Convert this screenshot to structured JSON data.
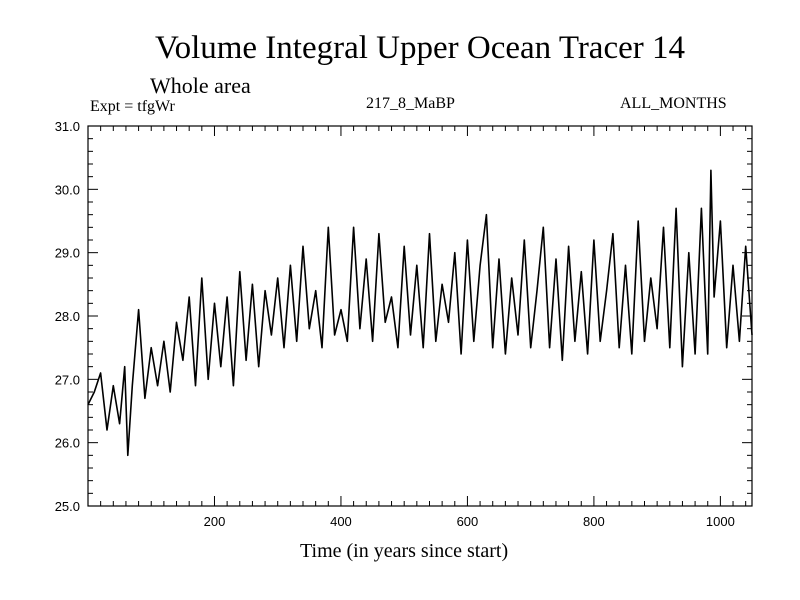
{
  "chart_data": {
    "type": "line",
    "title": "Volume Integral Upper Ocean Tracer 14",
    "subtitle": "Whole area",
    "experiment_label": "Expt = tfgWr",
    "run_label": "217_8_MaBP",
    "period_label": "ALL_MONTHS",
    "xlabel": "Time (in years since start)",
    "ylabel": "",
    "xlim": [
      0,
      1050
    ],
    "ylim": [
      25.0,
      31.0
    ],
    "xticks": [
      200,
      400,
      600,
      800,
      1000
    ],
    "xtick_labels": [
      "200",
      "400",
      "600",
      "800",
      "1000"
    ],
    "yticks": [
      25.0,
      26.0,
      27.0,
      28.0,
      29.0,
      30.0,
      31.0
    ],
    "ytick_labels": [
      "25.0",
      "26.0",
      "27.0",
      "28.0",
      "29.0",
      "30.0",
      "31.0"
    ],
    "series": [
      {
        "name": "Volume Integral Upper Ocean Tracer 14",
        "x": [
          0,
          10,
          20,
          30,
          40,
          50,
          58,
          63,
          70,
          80,
          90,
          100,
          110,
          120,
          130,
          140,
          150,
          160,
          170,
          180,
          190,
          200,
          210,
          220,
          230,
          240,
          250,
          260,
          270,
          280,
          290,
          300,
          310,
          320,
          330,
          340,
          350,
          360,
          370,
          380,
          390,
          400,
          410,
          420,
          430,
          440,
          450,
          460,
          470,
          480,
          490,
          500,
          510,
          520,
          530,
          540,
          550,
          560,
          570,
          580,
          590,
          600,
          610,
          620,
          630,
          640,
          650,
          660,
          670,
          680,
          690,
          700,
          710,
          720,
          730,
          740,
          750,
          760,
          770,
          780,
          790,
          800,
          810,
          820,
          830,
          840,
          850,
          860,
          870,
          880,
          890,
          900,
          910,
          920,
          930,
          940,
          950,
          960,
          970,
          980,
          985,
          990,
          1000,
          1010,
          1020,
          1030,
          1040,
          1050
        ],
        "values": [
          26.6,
          26.8,
          27.1,
          26.2,
          26.9,
          26.3,
          27.2,
          25.8,
          26.9,
          28.1,
          26.7,
          27.5,
          26.9,
          27.6,
          26.8,
          27.9,
          27.3,
          28.3,
          26.9,
          28.6,
          27.0,
          28.2,
          27.2,
          28.3,
          26.9,
          28.7,
          27.3,
          28.5,
          27.2,
          28.4,
          27.7,
          28.6,
          27.5,
          28.8,
          27.6,
          29.1,
          27.8,
          28.4,
          27.5,
          29.4,
          27.7,
          28.1,
          27.6,
          29.4,
          27.8,
          28.9,
          27.6,
          29.3,
          27.9,
          28.3,
          27.5,
          29.1,
          27.7,
          28.8,
          27.5,
          29.3,
          27.6,
          28.5,
          27.9,
          29.0,
          27.4,
          29.2,
          27.6,
          28.8,
          29.6,
          27.5,
          28.9,
          27.4,
          28.6,
          27.7,
          29.2,
          27.5,
          28.4,
          29.4,
          27.5,
          28.9,
          27.3,
          29.1,
          27.6,
          28.7,
          27.4,
          29.2,
          27.6,
          28.4,
          29.3,
          27.5,
          28.8,
          27.4,
          29.5,
          27.6,
          28.6,
          27.8,
          29.4,
          27.5,
          29.7,
          27.2,
          29.0,
          27.4,
          29.7,
          27.4,
          30.3,
          28.3,
          29.5,
          27.5,
          28.8,
          27.6,
          29.1,
          27.7
        ]
      }
    ]
  }
}
